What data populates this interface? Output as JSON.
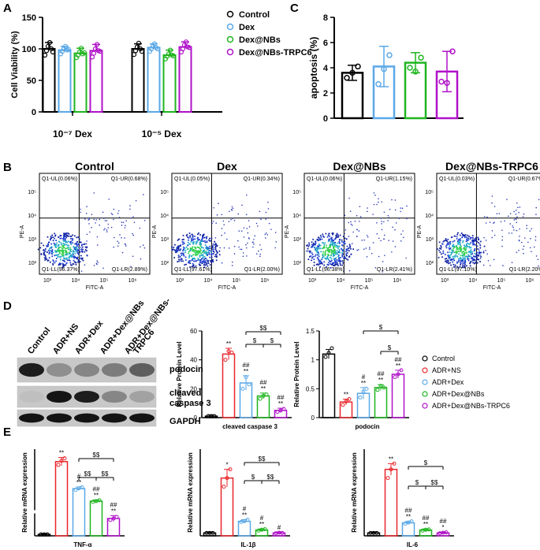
{
  "colors": {
    "control": "#000000",
    "adrns": "#e8262b",
    "dex": "#5aa8e8",
    "dexnbs": "#1fb51f",
    "trpc6": "#b012c9"
  },
  "panel_labels": {
    "A": "A",
    "B": "B",
    "C": "C",
    "D": "D",
    "E": "E"
  },
  "blot": {
    "lanes": [
      "Control",
      "ADR+NS",
      "ADR+Dex",
      "ADR+Dex@NBs",
      "ADR+Dex@NBs-\nTRPC6"
    ],
    "rows": [
      "podocin",
      "cleaved\ncaspase 3",
      "GAPDH"
    ]
  },
  "flow": {
    "panels": [
      {
        "title": "Control",
        "ul": "Q1-UL(0.06%)",
        "ur": "Q1-UR(0.68%)",
        "ll": "Q1-LL(96.37%)",
        "lr": "Q1-LR(2.89%)"
      },
      {
        "title": "Dex",
        "ul": "Q1-UL(0.05%)",
        "ur": "Q1-UR(0.34%)",
        "ll": "Q1-LL(97.61%)",
        "lr": "Q1-LR(2.00%)"
      },
      {
        "title": "Dex@NBs",
        "ul": "Q1-UL(0.06%)",
        "ur": "Q1-UR(1.15%)",
        "ll": "Q1-LL(96.38%)",
        "lr": "Q1-LR(2.41%)"
      },
      {
        "title": "Dex@NBs-TRPC6",
        "ul": "Q1-UL(0.03%)",
        "ur": "Q1-UR(0.67%)",
        "ll": "Q1-LL(97.10%)",
        "lr": "Q1-LR(2.20%)"
      }
    ],
    "xlabel": "FITC-A",
    "ylabel": "PE-A",
    "ticks": [
      "10³",
      "10⁴",
      "10⁵",
      "10⁶"
    ],
    "yticks": [
      "10²",
      "10³",
      "10⁴",
      "10⁵"
    ]
  },
  "chart_data": [
    {
      "id": "A",
      "type": "bar",
      "title": "",
      "ylabel": "Cell Viability (%)",
      "ylim": [
        0,
        150
      ],
      "yticks": [
        0,
        50,
        100,
        150
      ],
      "categories": [
        "10⁻⁷ Dex",
        "10⁻⁵ Dex"
      ],
      "legend": [
        "Control",
        "Dex",
        "Dex@NBs",
        "Dex@NBs-TRPC6"
      ],
      "series": [
        {
          "name": "Control",
          "key": "control",
          "values": [
            100,
            100
          ],
          "err": [
            10,
            8
          ],
          "points": [
            [
              90,
              97,
              104,
              110,
              100,
              95
            ],
            [
              91,
              97,
              103,
              109,
              100,
              96
            ]
          ]
        },
        {
          "name": "Dex",
          "key": "dex",
          "values": [
            98,
            102
          ],
          "err": [
            6,
            6
          ],
          "points": [
            [
              92,
              96,
              100,
              104,
              98,
              99
            ],
            [
              96,
              100,
              104,
              108,
              102,
              100
            ]
          ]
        },
        {
          "name": "Dex@NBs",
          "key": "dexnbs",
          "values": [
            93,
            90
          ],
          "err": [
            8,
            8
          ],
          "points": [
            [
              86,
              90,
              95,
              101,
              92,
              94
            ],
            [
              84,
              88,
              92,
              98,
              90,
              89
            ]
          ]
        },
        {
          "name": "Dex@NBs-TRPC6",
          "key": "trpc6",
          "values": [
            97,
            103
          ],
          "err": [
            10,
            8
          ],
          "points": [
            [
              87,
              93,
              100,
              107,
              97,
              96
            ],
            [
              95,
              100,
              106,
              111,
              103,
              102
            ]
          ]
        }
      ]
    },
    {
      "id": "C",
      "type": "bar",
      "ylabel": "apoptosis (%)",
      "ylim": [
        0,
        8
      ],
      "yticks": [
        0,
        2,
        4,
        6,
        8
      ],
      "categories": [
        "Control",
        "Dex",
        "Dex@NBs",
        "Dex@NBs-TRPC6"
      ],
      "keys": [
        "control",
        "dex",
        "dexnbs",
        "trpc6"
      ],
      "values": [
        3.6,
        4.1,
        4.4,
        3.7
      ],
      "err": [
        0.6,
        1.6,
        0.8,
        1.6
      ],
      "points": [
        [
          3.2,
          3.6,
          4.1
        ],
        [
          2.7,
          3.9,
          5.0
        ],
        [
          4.0,
          3.7,
          4.8
        ],
        [
          2.9,
          2.8,
          5.3
        ]
      ]
    },
    {
      "id": "D1",
      "type": "bar",
      "xlabel": "cleaved caspase 3",
      "ylabel": "Relative Protein Level",
      "ylim": [
        0,
        60
      ],
      "yticks": [
        0,
        20,
        40,
        60
      ],
      "categories": [
        "Control",
        "ADR+NS",
        "ADR+Dex",
        "ADR+Dex@NBs",
        "ADR+Dex@NBs-TRPC6"
      ],
      "keys": [
        "control",
        "adrns",
        "dex",
        "dexnbs",
        "trpc6"
      ],
      "values": [
        1,
        44,
        24,
        15,
        5
      ],
      "err": [
        1,
        4,
        5,
        2,
        1.5
      ],
      "points": [
        [
          1,
          1,
          1
        ],
        [
          40,
          46,
          45
        ],
        [
          20,
          28,
          23
        ],
        [
          13,
          15,
          16
        ],
        [
          4,
          5,
          6
        ]
      ],
      "labels": [
        "",
        "**",
        "##\n**",
        "##\n**",
        "##\n**"
      ],
      "brackets": [
        {
          "from": 2,
          "to": 4,
          "label": "$$",
          "level": 2
        },
        {
          "from": 2,
          "to": 3,
          "label": "$",
          "level": 1
        },
        {
          "from": 3,
          "to": 4,
          "label": "$",
          "level": 1
        }
      ]
    },
    {
      "id": "D2",
      "type": "bar",
      "xlabel": "podocin",
      "ylabel": "Relative Protein Level",
      "ylim": [
        0,
        1.5
      ],
      "yticks": [
        0.0,
        0.5,
        1.0,
        1.5
      ],
      "categories": [
        "Control",
        "ADR+NS",
        "ADR+Dex",
        "ADR+Dex@NBs",
        "ADR+Dex@NBs-TRPC6"
      ],
      "keys": [
        "control",
        "adrns",
        "dex",
        "dexnbs",
        "trpc6"
      ],
      "values": [
        1.1,
        0.27,
        0.42,
        0.52,
        0.75
      ],
      "err": [
        0.08,
        0.05,
        0.1,
        0.05,
        0.07
      ],
      "points": [
        [
          1.05,
          1.12,
          1.2
        ],
        [
          0.22,
          0.28,
          0.32
        ],
        [
          0.35,
          0.45,
          0.5
        ],
        [
          0.48,
          0.55,
          0.52
        ],
        [
          0.7,
          0.75,
          0.82
        ]
      ],
      "labels": [
        "",
        "**",
        "#\n**",
        "##\n**",
        "##\n**"
      ],
      "brackets": [
        {
          "from": 2,
          "to": 4,
          "label": "$",
          "level": 2
        },
        {
          "from": 3,
          "to": 4,
          "label": "$",
          "level": 1
        }
      ],
      "legend": [
        "Control",
        "ADR+NS",
        "ADR+Dex",
        "ADR+Dex@NBs",
        "ADR+Dex@NBs-TRPC6"
      ]
    },
    {
      "id": "E1",
      "type": "bar",
      "xlabel": "TNF-α",
      "ylabel": "Relative mRNA expression",
      "ylim": [
        0,
        160
      ],
      "categories": [
        "Control",
        "ADR+NS",
        "ADR+Dex",
        "ADR+Dex@NBs",
        "ADR+Dex@NBs-TRPC6"
      ],
      "keys": [
        "control",
        "adrns",
        "dex",
        "dexnbs",
        "trpc6"
      ],
      "values": [
        1,
        130,
        65,
        35,
        12
      ],
      "err": [
        0.5,
        10,
        4,
        3,
        2
      ],
      "points": [
        [
          1,
          1,
          1
        ],
        [
          122,
          132,
          138
        ],
        [
          62,
          66,
          68
        ],
        [
          33,
          35,
          37
        ],
        [
          11,
          12,
          13
        ]
      ],
      "labels": [
        "",
        "**",
        "#\n**",
        "##\n**",
        "##\n**"
      ],
      "brackets": [
        {
          "from": 2,
          "to": 4,
          "label": "$$",
          "level": 2
        },
        {
          "from": 2,
          "to": 3,
          "label": "$$",
          "level": 1
        },
        {
          "from": 3,
          "to": 4,
          "label": "$$",
          "level": 1
        }
      ]
    },
    {
      "id": "E2",
      "type": "bar",
      "xlabel": "IL-1β",
      "ylabel": "Relative mRNA expression",
      "ylim": [
        0,
        30
      ],
      "categories": [
        "Control",
        "ADR+NS",
        "ADR+Dex",
        "ADR+Dex@NBs",
        "ADR+Dex@NBs-TRPC6"
      ],
      "keys": [
        "control",
        "adrns",
        "dex",
        "dexnbs",
        "trpc6"
      ],
      "values": [
        1,
        20,
        5,
        2,
        1
      ],
      "err": [
        0.4,
        3,
        0.6,
        0.4,
        0.3
      ],
      "points": [
        [
          1,
          1,
          1
        ],
        [
          17,
          20,
          23
        ],
        [
          4.8,
          5.1,
          5.6
        ],
        [
          1.8,
          2.1,
          2.3
        ],
        [
          0.9,
          1.1,
          1.0
        ]
      ],
      "labels": [
        "",
        "*",
        "#\n**",
        "#\n**",
        "#"
      ],
      "brackets": [
        {
          "from": 2,
          "to": 4,
          "label": "$$",
          "level": 2
        },
        {
          "from": 2,
          "to": 3,
          "label": "$",
          "level": 1
        },
        {
          "from": 3,
          "to": 4,
          "label": "$$",
          "level": 1
        }
      ]
    },
    {
      "id": "E3",
      "type": "bar",
      "xlabel": "IL-6",
      "ylabel": "Relative mRNA expression",
      "ylim": [
        0,
        30
      ],
      "categories": [
        "Control",
        "ADR+NS",
        "ADR+Dex",
        "ADR+Dex@NBs",
        "ADR+Dex@NBs-TRPC6"
      ],
      "keys": [
        "control",
        "adrns",
        "dex",
        "dexnbs",
        "trpc6"
      ],
      "values": [
        1,
        23,
        4.5,
        2,
        1
      ],
      "err": [
        0.4,
        2,
        0.5,
        0.4,
        0.3
      ],
      "points": [
        [
          1,
          1,
          1
        ],
        [
          20,
          23,
          25
        ],
        [
          4.2,
          4.6,
          5
        ],
        [
          1.8,
          2.1,
          2.2
        ],
        [
          0.9,
          1.1,
          1.2
        ]
      ],
      "labels": [
        "",
        "**",
        "##\n**",
        "##\n**",
        "##\n*"
      ],
      "brackets": [
        {
          "from": 2,
          "to": 4,
          "label": "$",
          "level": 2
        },
        {
          "from": 2,
          "to": 3,
          "label": "$",
          "level": 1
        },
        {
          "from": 3,
          "to": 4,
          "label": "$$",
          "level": 1
        }
      ]
    }
  ]
}
